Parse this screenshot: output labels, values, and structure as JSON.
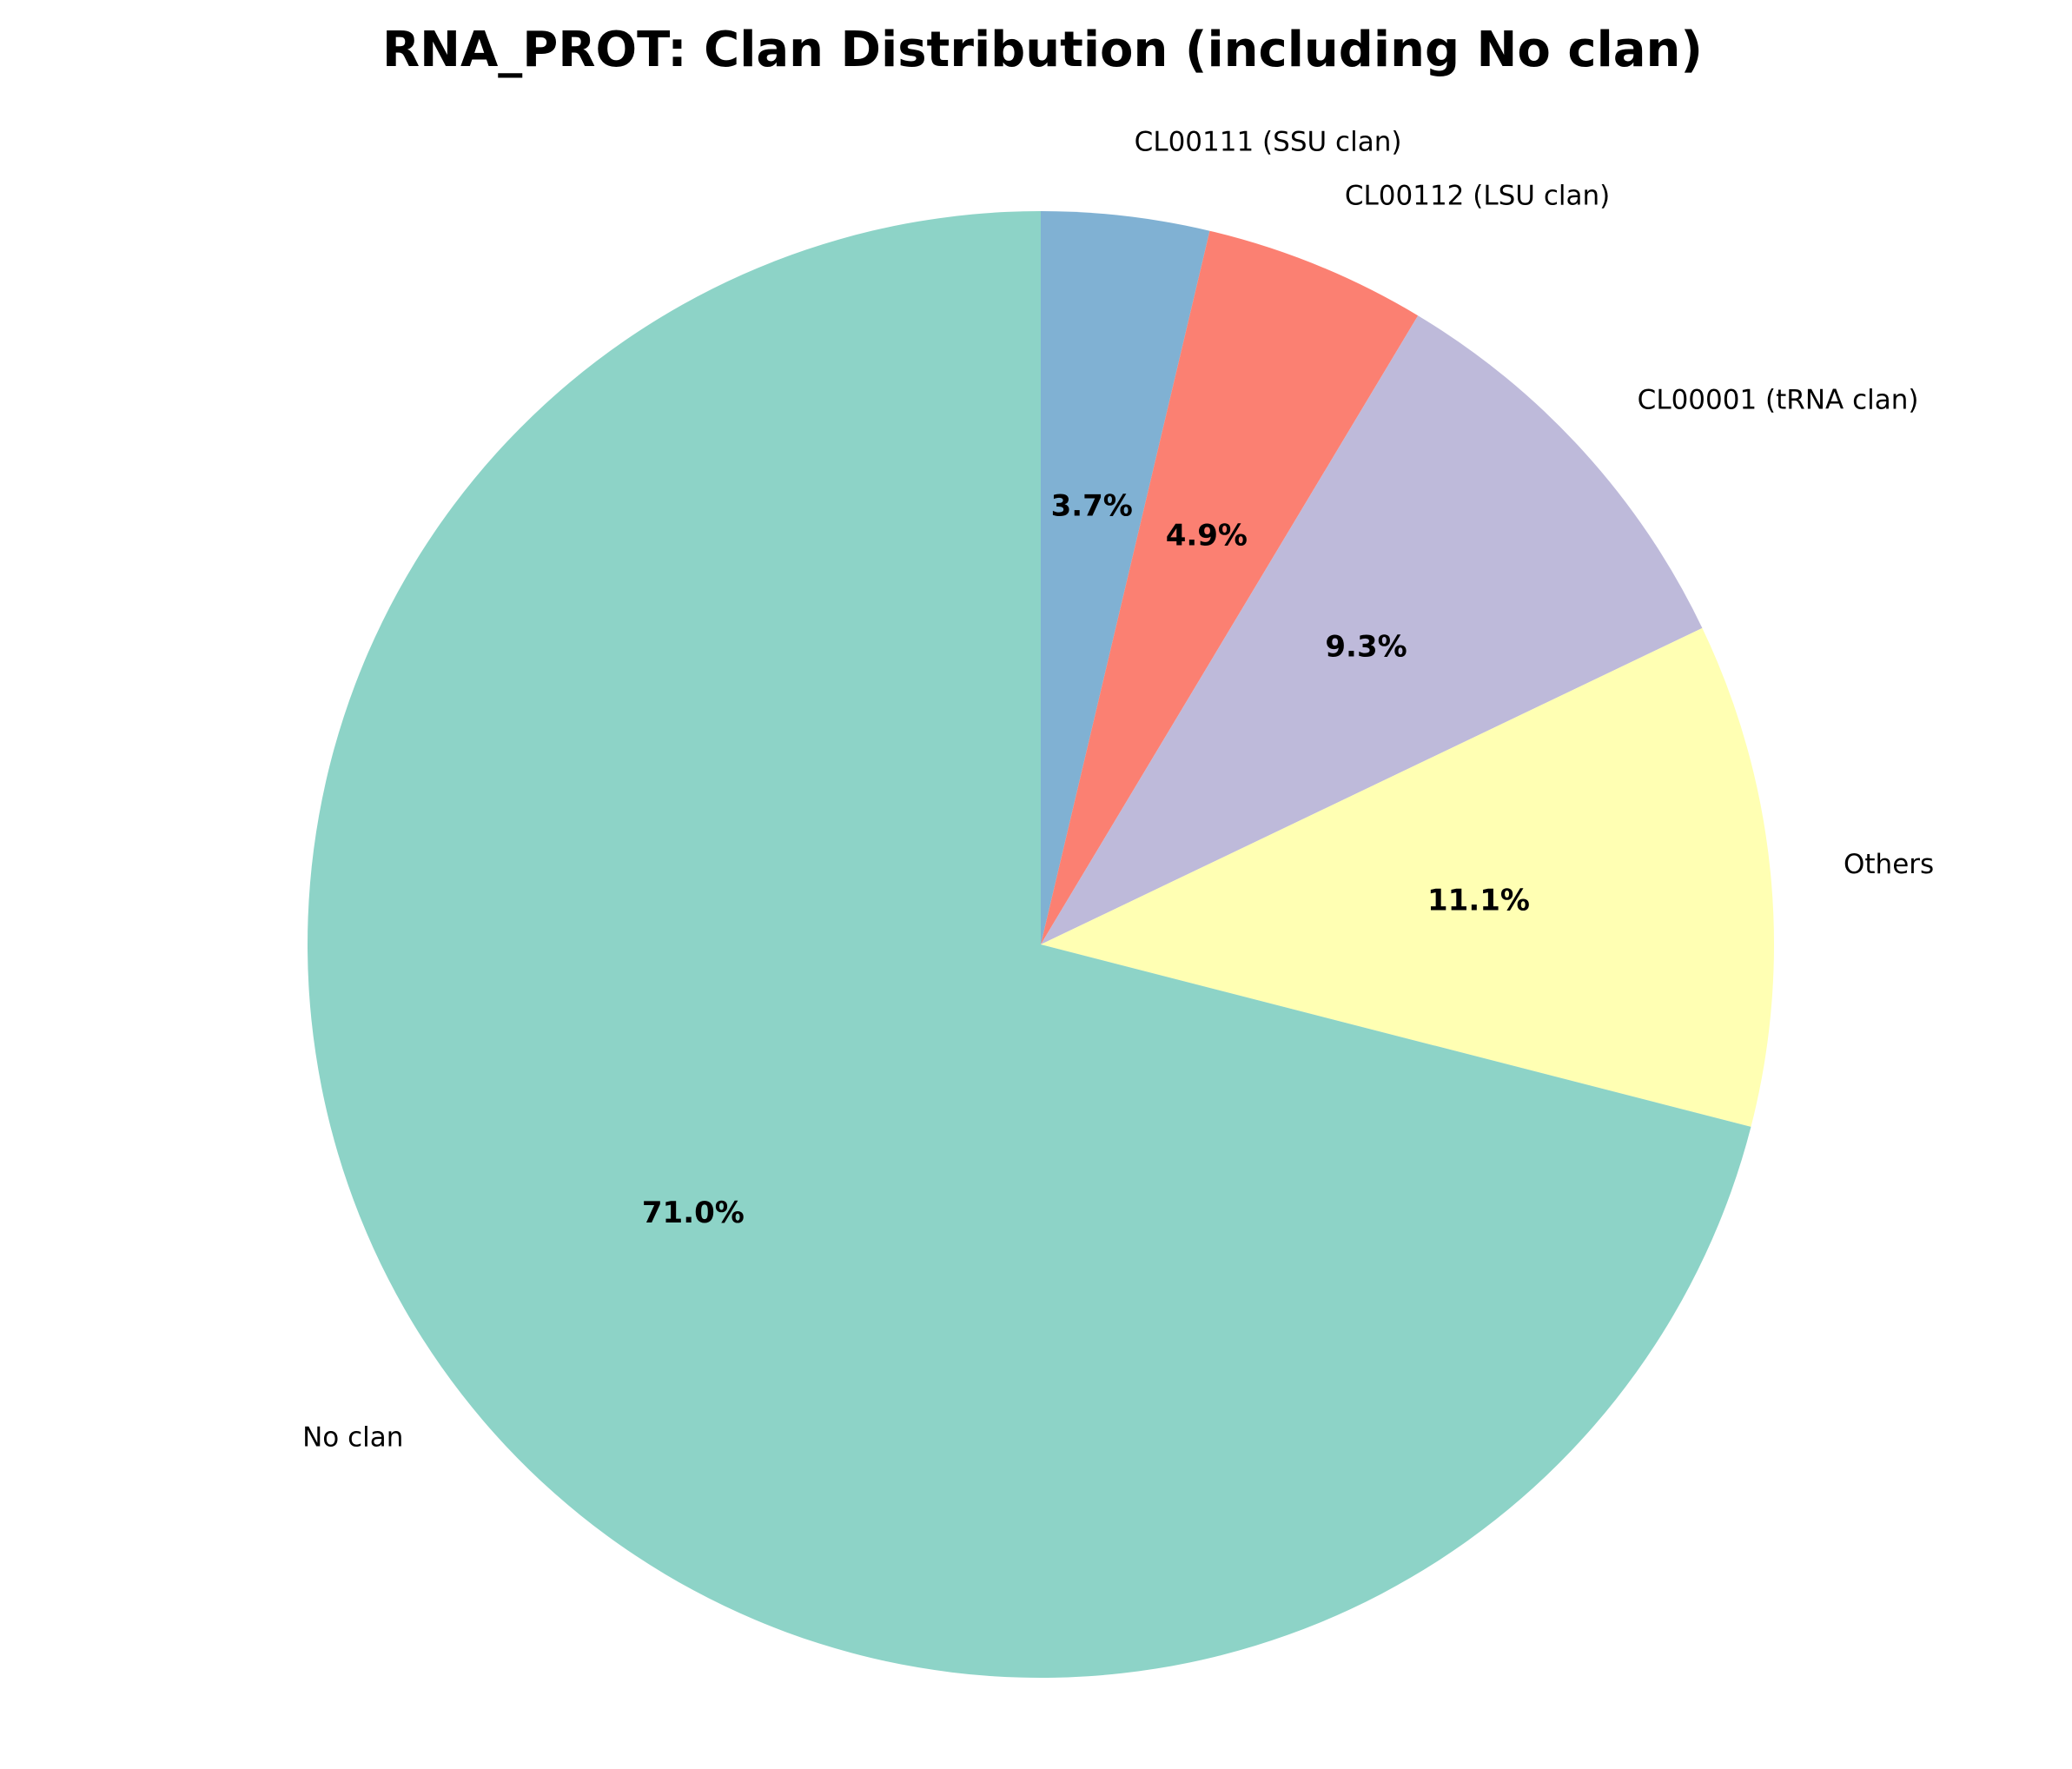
{
  "chart_data": {
    "type": "pie",
    "title": "RNA_PROT: Clan Distribution (including No clan)",
    "slices": [
      {
        "label": "CL00111 (SSU clan)",
        "value": 3.7,
        "percent_label": "3.7%",
        "color": "#80b1d3"
      },
      {
        "label": "CL00112 (LSU clan)",
        "value": 4.9,
        "percent_label": "4.9%",
        "color": "#fb8072"
      },
      {
        "label": "CL00001 (tRNA clan)",
        "value": 9.3,
        "percent_label": "9.3%",
        "color": "#bebada"
      },
      {
        "label": "Others",
        "value": 11.1,
        "percent_label": "11.1%",
        "color": "#ffffb3"
      },
      {
        "label": "No clan",
        "value": 71.0,
        "percent_label": "71.0%",
        "color": "#8dd3c7"
      }
    ],
    "start_angle": "top, clockwise"
  }
}
